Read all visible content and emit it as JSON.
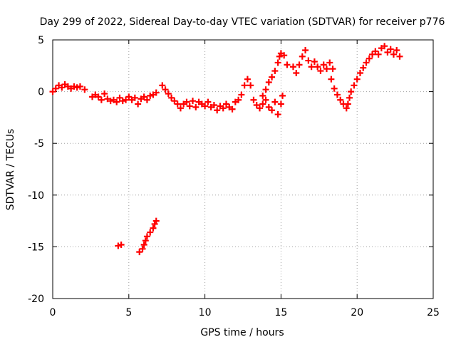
{
  "chart_data": {
    "type": "scatter",
    "title": "Day 299 of 2022, Sidereal Day-to-day VTEC variation (SDTVAR) for receiver p776",
    "xlabel": "GPS time / hours",
    "ylabel": "SDTVAR / TECUs",
    "xlim": [
      0,
      25
    ],
    "ylim": [
      -20,
      5
    ],
    "xticks": [
      0,
      5,
      10,
      15,
      20,
      25
    ],
    "yticks": [
      -20,
      -15,
      -10,
      -5,
      0,
      5
    ],
    "xtick_labels": [
      "0",
      "5",
      "10",
      "15",
      "20",
      "25"
    ],
    "ytick_labels": [
      "-20",
      "-15",
      "-10",
      "-5",
      "0",
      "5"
    ],
    "grid": true,
    "marker": "plus",
    "color": "#ff0000",
    "series": [
      {
        "name": "SDTVAR",
        "points": [
          [
            0.0,
            0.0
          ],
          [
            0.2,
            0.3
          ],
          [
            0.4,
            0.6
          ],
          [
            0.6,
            0.4
          ],
          [
            0.8,
            0.7
          ],
          [
            1.0,
            0.5
          ],
          [
            1.2,
            0.3
          ],
          [
            1.4,
            0.5
          ],
          [
            1.6,
            0.4
          ],
          [
            1.8,
            0.5
          ],
          [
            2.1,
            0.2
          ],
          [
            2.6,
            -0.5
          ],
          [
            2.8,
            -0.3
          ],
          [
            3.0,
            -0.5
          ],
          [
            3.2,
            -0.8
          ],
          [
            3.4,
            -0.2
          ],
          [
            3.6,
            -0.7
          ],
          [
            3.8,
            -0.9
          ],
          [
            4.0,
            -0.8
          ],
          [
            4.2,
            -1.0
          ],
          [
            4.4,
            -0.6
          ],
          [
            4.6,
            -0.9
          ],
          [
            4.8,
            -0.8
          ],
          [
            5.0,
            -0.5
          ],
          [
            5.2,
            -0.8
          ],
          [
            5.4,
            -0.6
          ],
          [
            5.6,
            -1.2
          ],
          [
            5.8,
            -0.7
          ],
          [
            6.0,
            -0.5
          ],
          [
            6.2,
            -0.8
          ],
          [
            6.4,
            -0.4
          ],
          [
            6.6,
            -0.3
          ],
          [
            6.8,
            -0.1
          ],
          [
            7.2,
            0.6
          ],
          [
            7.4,
            0.2
          ],
          [
            7.6,
            -0.2
          ],
          [
            7.8,
            -0.6
          ],
          [
            8.0,
            -0.9
          ],
          [
            8.2,
            -1.2
          ],
          [
            8.4,
            -1.6
          ],
          [
            8.6,
            -1.2
          ],
          [
            8.8,
            -1.0
          ],
          [
            9.0,
            -1.4
          ],
          [
            9.2,
            -0.9
          ],
          [
            9.4,
            -1.5
          ],
          [
            9.6,
            -1.0
          ],
          [
            9.8,
            -1.2
          ],
          [
            10.0,
            -1.4
          ],
          [
            10.2,
            -1.0
          ],
          [
            10.4,
            -1.5
          ],
          [
            10.6,
            -1.3
          ],
          [
            10.8,
            -1.8
          ],
          [
            11.0,
            -1.4
          ],
          [
            11.2,
            -1.6
          ],
          [
            11.4,
            -1.2
          ],
          [
            11.6,
            -1.5
          ],
          [
            11.8,
            -1.7
          ],
          [
            12.0,
            -1.0
          ],
          [
            12.2,
            -0.8
          ],
          [
            12.4,
            -0.3
          ],
          [
            12.6,
            0.6
          ],
          [
            12.8,
            1.2
          ],
          [
            13.0,
            0.6
          ],
          [
            13.2,
            -0.8
          ],
          [
            13.4,
            -1.3
          ],
          [
            13.6,
            -1.6
          ],
          [
            13.8,
            -1.2
          ],
          [
            14.0,
            -0.8
          ],
          [
            14.2,
            -1.5
          ],
          [
            14.4,
            -1.8
          ],
          [
            14.6,
            -1.0
          ],
          [
            14.8,
            -2.2
          ],
          [
            15.0,
            -1.2
          ],
          [
            15.1,
            -0.4
          ],
          [
            13.8,
            -0.4
          ],
          [
            14.0,
            0.2
          ],
          [
            14.2,
            0.9
          ],
          [
            14.4,
            1.4
          ],
          [
            14.6,
            2.0
          ],
          [
            14.8,
            2.8
          ],
          [
            14.9,
            3.4
          ],
          [
            15.0,
            3.7
          ],
          [
            15.2,
            3.5
          ],
          [
            15.4,
            2.6
          ],
          [
            15.8,
            2.4
          ],
          [
            16.0,
            1.8
          ],
          [
            16.2,
            2.6
          ],
          [
            16.4,
            3.4
          ],
          [
            16.6,
            4.0
          ],
          [
            16.8,
            3.0
          ],
          [
            17.0,
            2.4
          ],
          [
            17.2,
            2.9
          ],
          [
            17.4,
            2.4
          ],
          [
            17.6,
            2.0
          ],
          [
            17.8,
            2.6
          ],
          [
            18.0,
            2.2
          ],
          [
            18.2,
            2.8
          ],
          [
            18.4,
            2.2
          ],
          [
            18.3,
            1.2
          ],
          [
            18.5,
            0.3
          ],
          [
            18.7,
            -0.3
          ],
          [
            18.9,
            -0.8
          ],
          [
            19.1,
            -1.2
          ],
          [
            19.3,
            -1.6
          ],
          [
            19.4,
            -1.2
          ],
          [
            19.5,
            -0.6
          ],
          [
            19.6,
            0.0
          ],
          [
            19.8,
            0.6
          ],
          [
            20.0,
            1.2
          ],
          [
            20.2,
            1.8
          ],
          [
            20.4,
            2.3
          ],
          [
            20.6,
            2.8
          ],
          [
            20.8,
            3.2
          ],
          [
            21.0,
            3.6
          ],
          [
            21.2,
            3.9
          ],
          [
            21.4,
            3.6
          ],
          [
            21.6,
            4.2
          ],
          [
            21.8,
            4.4
          ],
          [
            22.0,
            3.8
          ],
          [
            22.2,
            4.1
          ],
          [
            22.4,
            3.6
          ],
          [
            22.6,
            4.0
          ],
          [
            22.8,
            3.4
          ],
          [
            4.3,
            -14.9
          ],
          [
            4.5,
            -14.8
          ],
          [
            5.7,
            -15.5
          ],
          [
            5.9,
            -15.2
          ],
          [
            6.0,
            -14.8
          ],
          [
            6.1,
            -14.4
          ],
          [
            6.2,
            -14.0
          ],
          [
            6.4,
            -13.6
          ],
          [
            6.6,
            -13.2
          ],
          [
            6.7,
            -12.8
          ],
          [
            6.8,
            -12.5
          ]
        ]
      }
    ]
  }
}
